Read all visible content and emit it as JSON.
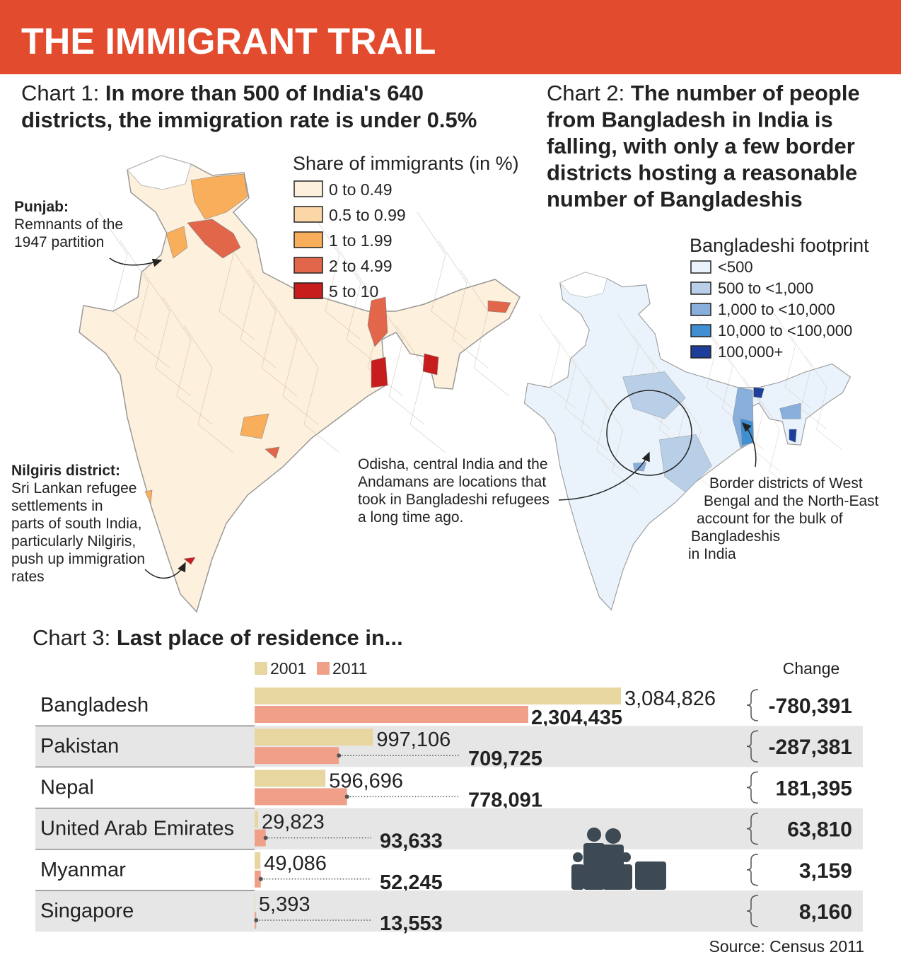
{
  "header": {
    "title": "THE IMMIGRANT TRAIL"
  },
  "maps": [
    {
      "label": "Chart 1:",
      "title": [
        "In more than 500 of India's 640",
        "districts, the immigration rate is under 0.5%"
      ],
      "legend_title": "Share of immigrants (in %)",
      "legend": [
        {
          "label": "0 to 0.49",
          "color": "#fdf0dc"
        },
        {
          "label": "0.5 to 0.99",
          "color": "#fbd7a8"
        },
        {
          "label": "1 to 1.99",
          "color": "#f9ae5b"
        },
        {
          "label": "2 to 4.99",
          "color": "#e2664a"
        },
        {
          "label": "5 to 10",
          "color": "#c81d1d"
        }
      ],
      "annotations": [
        {
          "heading": "Punjab:",
          "text": [
            "Remnants of the",
            "1947 partition"
          ]
        },
        {
          "heading": "Nilgiris district:",
          "text": [
            "Sri Lankan refugee",
            "settlements in",
            "parts of south India,",
            "particularly Nilgiris,",
            "push up immigration",
            "rates"
          ]
        }
      ]
    },
    {
      "label": "Chart 2:",
      "title": [
        "The number of people",
        "from Bangladesh in India is",
        "falling, with only a few border",
        "districts hosting a reasonable",
        "number of Bangladeshis"
      ],
      "legend_title": "Bangladeshi footprint",
      "legend": [
        {
          "label": "<500",
          "color": "#eaf3fb"
        },
        {
          "label": "500 to <1,000",
          "color": "#b9cfe8"
        },
        {
          "label": "1,000 to <10,000",
          "color": "#88aedb"
        },
        {
          "label": "10,000 to <100,000",
          "color": "#3f8fd2"
        },
        {
          "label": "100,000+",
          "color": "#1d3f9a"
        }
      ],
      "annotations": [
        {
          "text": [
            "Odisha, central India and the",
            "Andamans are locations that",
            "took in Bangladeshi refugees",
            "a long time ago."
          ]
        },
        {
          "text": [
            "Border districts of West",
            "Bengal and the North-East",
            "account for the bulk of",
            "Bangladeshis",
            "in India"
          ]
        }
      ]
    }
  ],
  "chart_data": {
    "type": "bar",
    "orientation": "horizontal",
    "label": "Chart 3:",
    "title": "Last place of residence in...",
    "categories": [
      "Bangladesh",
      "Pakistan",
      "Nepal",
      "United Arab Emirates",
      "Myanmar",
      "Singapore"
    ],
    "series": [
      {
        "name": "2001",
        "color": "#e8d6a0",
        "values": [
          3084826,
          997106,
          596696,
          29823,
          49086,
          5393
        ],
        "value_labels": [
          "3,084,826",
          "997,106",
          "596,696",
          "29,823",
          "49,086",
          "5,393"
        ]
      },
      {
        "name": "2011",
        "color": "#f0a088",
        "values": [
          2304435,
          709725,
          778091,
          93633,
          52245,
          13553
        ],
        "value_labels": [
          "2,304,435",
          "709,725",
          "778,091",
          "93,633",
          "52,245",
          "13,553"
        ]
      }
    ],
    "change": {
      "title": "Change",
      "values": [
        -780391,
        -287381,
        181395,
        63810,
        3159,
        8160
      ],
      "value_labels": [
        "-780,391",
        "-287,381",
        "181,395",
        "63,810",
        "3,159",
        "8,160"
      ]
    }
  },
  "source": "Source: Census 2011"
}
